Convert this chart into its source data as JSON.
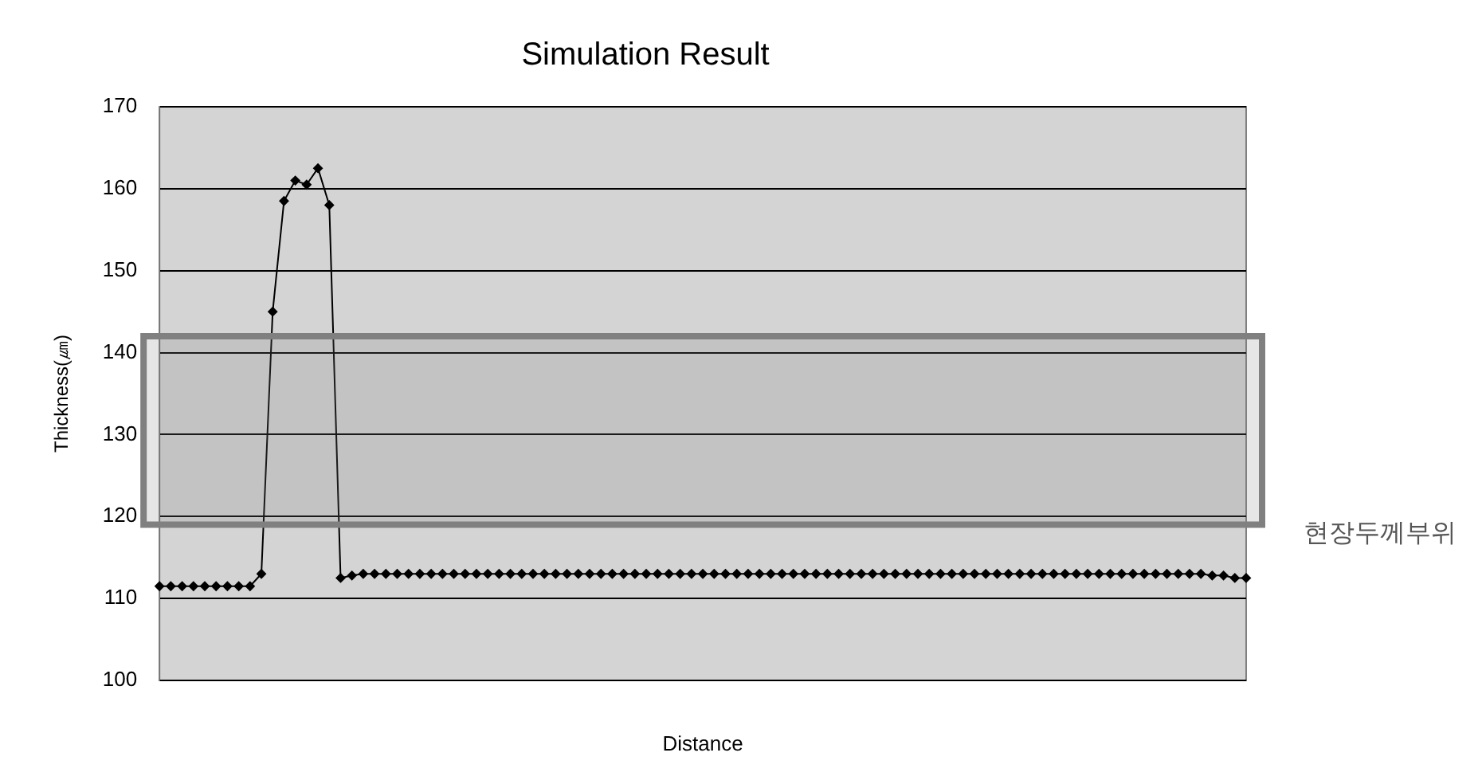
{
  "chart_data": {
    "type": "line",
    "title": "Simulation Result",
    "xlabel": "Distance",
    "ylabel": "Thickness(㎛)",
    "categories": [
      null,
      null,
      null,
      null,
      null,
      null,
      null,
      null,
      null,
      null,
      null,
      null,
      null,
      null,
      null,
      null,
      null,
      null,
      null,
      null,
      null,
      null,
      null,
      null,
      null,
      null,
      null,
      null,
      null,
      null,
      null,
      null,
      null,
      null,
      null,
      null,
      null,
      null,
      null,
      null,
      null,
      null,
      null,
      null,
      null,
      null,
      null,
      null,
      null,
      null,
      null,
      null,
      null,
      null,
      null,
      null,
      null,
      null,
      null,
      null,
      null,
      null,
      null,
      null,
      null,
      null,
      null,
      null,
      null,
      null,
      null,
      null,
      null,
      null,
      null,
      null,
      null,
      null,
      null,
      null,
      null,
      null,
      null,
      null,
      null,
      null,
      null,
      null,
      null,
      null,
      null,
      null,
      null,
      null,
      null,
      null,
      null
    ],
    "series": [
      {
        "color": "#000000",
        "values": [
          111.5,
          111.5,
          111.5,
          111.5,
          111.5,
          111.5,
          111.5,
          111.5,
          111.5,
          113,
          145,
          158.5,
          161,
          160.5,
          162.5,
          158,
          112.5,
          112.8,
          113,
          113,
          113,
          113,
          113,
          113,
          113,
          113,
          113,
          113,
          113,
          113,
          113,
          113,
          113,
          113,
          113,
          113,
          113,
          113,
          113,
          113,
          113,
          113,
          113,
          113,
          113,
          113,
          113,
          113,
          113,
          113,
          113,
          113,
          113,
          113,
          113,
          113,
          113,
          113,
          113,
          113,
          113,
          113,
          113,
          113,
          113,
          113,
          113,
          113,
          113,
          113,
          113,
          113,
          113,
          113,
          113,
          113,
          113,
          113,
          113,
          113,
          113,
          113,
          113,
          113,
          113,
          113,
          113,
          113,
          113,
          113,
          113,
          113,
          113,
          112.8,
          112.8,
          112.5,
          112.5
        ]
      }
    ],
    "ylim": [
      100,
      170
    ],
    "yticks": [
      100,
      110,
      120,
      130,
      140,
      150,
      160,
      170
    ],
    "grid": "y",
    "legend": false,
    "marker": "diamond",
    "line_style": "solid",
    "bands": [
      {
        "axis": "y",
        "from": 119,
        "to": 142,
        "label": "현장두께부위",
        "color": "#808080"
      }
    ]
  }
}
